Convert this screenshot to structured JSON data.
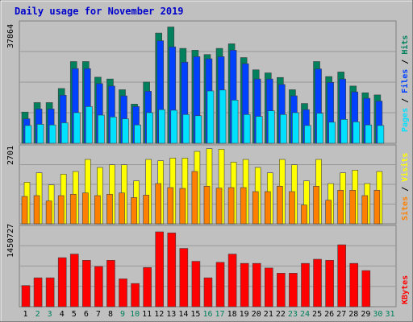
{
  "chart_data": {
    "title": "Daily usage for November 2019",
    "type": "bar",
    "days": [
      "1",
      "2",
      "3",
      "4",
      "5",
      "6",
      "7",
      "8",
      "9",
      "10",
      "11",
      "12",
      "13",
      "14",
      "15",
      "16",
      "17",
      "18",
      "19",
      "20",
      "21",
      "22",
      "23",
      "24",
      "25",
      "26",
      "27",
      "28",
      "29",
      "30",
      "31"
    ],
    "weekend_days": [
      "2",
      "3",
      "9",
      "10",
      "16",
      "17",
      "23",
      "24",
      "30",
      "31"
    ],
    "panels": {
      "hits_files_pages": {
        "max_label": "37864",
        "ymax": 37864,
        "axis_labels": [
          "Pages",
          "Files",
          "Hits"
        ],
        "series": [
          {
            "name": "Hits",
            "values": [
              10200,
              13300,
              13300,
              17900,
              26700,
              26700,
              21600,
              21000,
              17500,
              12800,
              20000,
              36000,
              38000,
              31000,
              30400,
              29000,
              31000,
              32500,
              28000,
              24000,
              23000,
              21500,
              17500,
              13000,
              26700,
              21800,
              23300,
              18700,
              16500,
              15800,
              null
            ]
          },
          {
            "name": "Files",
            "values": [
              8000,
              11200,
              11200,
              15700,
              24400,
              24400,
              19500,
              18700,
              15500,
              12000,
              17000,
              33500,
              31500,
              26500,
              28300,
              27600,
              28300,
              30400,
              26000,
              21000,
              21000,
              19200,
              15500,
              11000,
              24300,
              19900,
              21000,
              16800,
              14700,
              13800,
              null
            ]
          },
          {
            "name": "Pages",
            "values": [
              5800,
              6200,
              6000,
              6700,
              10000,
              12000,
              9200,
              8600,
              8000,
              6000,
              10000,
              11000,
              10800,
              9400,
              9000,
              17100,
              17400,
              14100,
              9400,
              8800,
              10600,
              9400,
              10000,
              5800,
              9800,
              6900,
              7800,
              7000,
              6000,
              5800,
              null
            ]
          }
        ]
      },
      "visits_sites": {
        "max_label": "2701",
        "ymax": 2701,
        "axis_labels": [
          "Sites",
          "Visits"
        ],
        "series": [
          {
            "name": "Visits",
            "values": [
              1550,
              1900,
              1450,
              1850,
              1950,
              2400,
              2100,
              2200,
              2200,
              1600,
              2400,
              2350,
              2450,
              2450,
              2700,
              2800,
              2780,
              2300,
              2400,
              2100,
              1900,
              2400,
              2200,
              1600,
              2400,
              1500,
              1900,
              2000,
              1500,
              1950,
              null
            ]
          },
          {
            "name": "Sites",
            "values": [
              1020,
              1050,
              850,
              1050,
              1100,
              1150,
              1050,
              1100,
              1150,
              980,
              1070,
              1500,
              1350,
              1320,
              1950,
              1400,
              1330,
              1350,
              1350,
              1200,
              1200,
              1400,
              1200,
              700,
              1400,
              880,
              1250,
              1250,
              1050,
              1250,
              null
            ]
          }
        ]
      },
      "kbytes": {
        "max_label": "1450727",
        "ymax": 1450727,
        "axis_labels": [
          "KBytes"
        ],
        "series": [
          {
            "name": "KBytes",
            "values": [
              410000,
              560000,
              560000,
              950000,
              1020000,
              900000,
              780000,
              900000,
              540000,
              450000,
              760000,
              1450727,
              1430000,
              1130000,
              880000,
              560000,
              860000,
              1020000,
              840000,
              840000,
              750000,
              650000,
              650000,
              840000,
              920000,
              900000,
              1200000,
              840000,
              700000,
              null,
              null
            ]
          }
        ]
      }
    },
    "colors": {
      "frame": "#c0c0c0",
      "plot_bg": "#c0c0c0",
      "grid": "#999999",
      "title": "#0000cc",
      "hits": "#00805c",
      "files": "#0040ff",
      "pages": "#00e0ff",
      "visits": "#ffff00",
      "sites": "#ff8000",
      "kbytes": "#ff0000",
      "weekday_label": "#000000",
      "weekend_label": "#00805c"
    }
  }
}
